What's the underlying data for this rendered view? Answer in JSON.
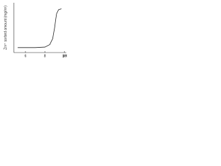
{
  "chart_data": {
    "type": "line",
    "y_label": "Zn²⁺ sorbed amount (mg/m²)",
    "x_label": "pH",
    "x": [
      5.2,
      6.0,
      7.0,
      8.0,
      8.5,
      8.8,
      9.0,
      9.1,
      9.2,
      9.4,
      9.7
    ],
    "values": [
      1.0,
      1.0,
      1.0,
      1.1,
      1.6,
      2.8,
      5.0,
      6.5,
      7.8,
      8.6,
      8.8
    ],
    "color": "#222222",
    "xlim": [
      4.8,
      10.2
    ],
    "xticks": [
      6,
      8,
      10
    ],
    "ylim": [
      0,
      10
    ]
  }
}
